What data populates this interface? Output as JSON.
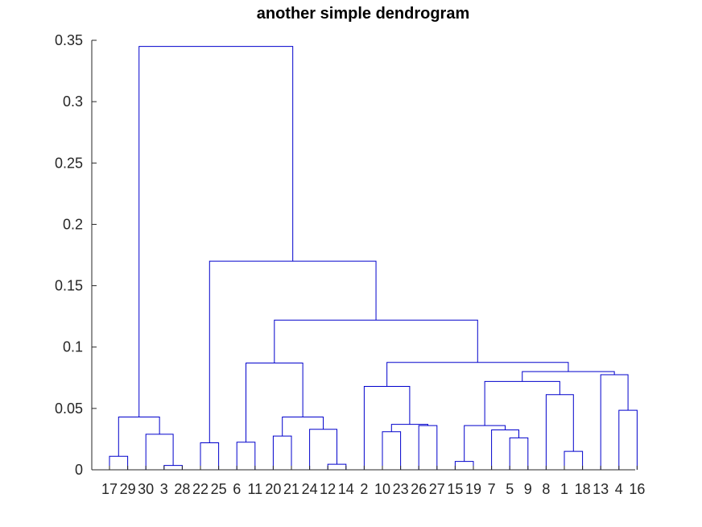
{
  "chart_data": {
    "type": "dendrogram",
    "title": "another simple dendrogram",
    "xlabel": "",
    "ylabel": "",
    "ylim": [
      0,
      0.35
    ],
    "yticks": [
      "0",
      "0.05",
      "0.1",
      "0.15",
      "0.2",
      "0.25",
      "0.3",
      "0.35"
    ],
    "leaf_order": [
      "17",
      "29",
      "30",
      "3",
      "28",
      "22",
      "25",
      "6",
      "11",
      "20",
      "21",
      "24",
      "12",
      "14",
      "2",
      "10",
      "23",
      "26",
      "27",
      "15",
      "19",
      "7",
      "5",
      "9",
      "8",
      "1",
      "18",
      "13",
      "4",
      "16"
    ],
    "link_color": "#0000cc",
    "axis_color": "#262626",
    "merges": [
      {
        "children": [
          "17",
          "29"
        ],
        "height": 0.011
      },
      {
        "children": [
          "3",
          "28"
        ],
        "height": 0.0035
      },
      {
        "children": [
          "30",
          "3|28"
        ],
        "height": 0.029
      },
      {
        "children": [
          "17|29",
          "30|3|28"
        ],
        "height": 0.043
      },
      {
        "children": [
          "22",
          "25"
        ],
        "height": 0.022
      },
      {
        "children": [
          "6",
          "11"
        ],
        "height": 0.0225
      },
      {
        "children": [
          "20",
          "21"
        ],
        "height": 0.0275
      },
      {
        "children": [
          "12",
          "14"
        ],
        "height": 0.0045
      },
      {
        "children": [
          "24",
          "12|14"
        ],
        "height": 0.033
      },
      {
        "children": [
          "20|21",
          "24|12|14"
        ],
        "height": 0.043
      },
      {
        "children": [
          "6|11",
          "20|21|24|12|14"
        ],
        "height": 0.087
      },
      {
        "children": [
          "10",
          "23"
        ],
        "height": 0.031
      },
      {
        "children": [
          "26",
          "27"
        ],
        "height": 0.036
      },
      {
        "children": [
          "10|23",
          "26|27"
        ],
        "height": 0.037
      },
      {
        "children": [
          "2",
          "10|23|26|27"
        ],
        "height": 0.068
      },
      {
        "children": [
          "15",
          "19"
        ],
        "height": 0.0068
      },
      {
        "children": [
          "5",
          "9"
        ],
        "height": 0.026
      },
      {
        "children": [
          "7",
          "5|9"
        ],
        "height": 0.0325
      },
      {
        "children": [
          "15|19",
          "7|5|9"
        ],
        "height": 0.036
      },
      {
        "children": [
          "1",
          "18"
        ],
        "height": 0.015
      },
      {
        "children": [
          "8",
          "1|18"
        ],
        "height": 0.0612
      },
      {
        "children": [
          "15|19|7|5|9",
          "8|1|18"
        ],
        "height": 0.072
      },
      {
        "children": [
          "4",
          "16"
        ],
        "height": 0.0485
      },
      {
        "children": [
          "13",
          "4|16"
        ],
        "height": 0.0775
      },
      {
        "children": [
          "15|19|7|5|9|8|1|18",
          "13|4|16"
        ],
        "height": 0.08
      },
      {
        "children": [
          "2|10|23|26|27",
          "15|19|7|5|9|8|1|18|13|4|16"
        ],
        "height": 0.0875
      },
      {
        "children": [
          "6|11|20|21|24|12|14",
          "2|10|23|26|27|15|19|7|5|9|8|1|18|13|4|16"
        ],
        "height": 0.122
      },
      {
        "children": [
          "22|25",
          "6|11|20|21|24|12|14|2|10|23|26|27|15|19|7|5|9|8|1|18|13|4|16"
        ],
        "height": 0.17
      },
      {
        "children": [
          "17|29|30|3|28",
          "22|25|6|11|20|21|24|12|14|2|10|23|26|27|15|19|7|5|9|8|1|18|13|4|16"
        ],
        "height": 0.345
      }
    ]
  }
}
